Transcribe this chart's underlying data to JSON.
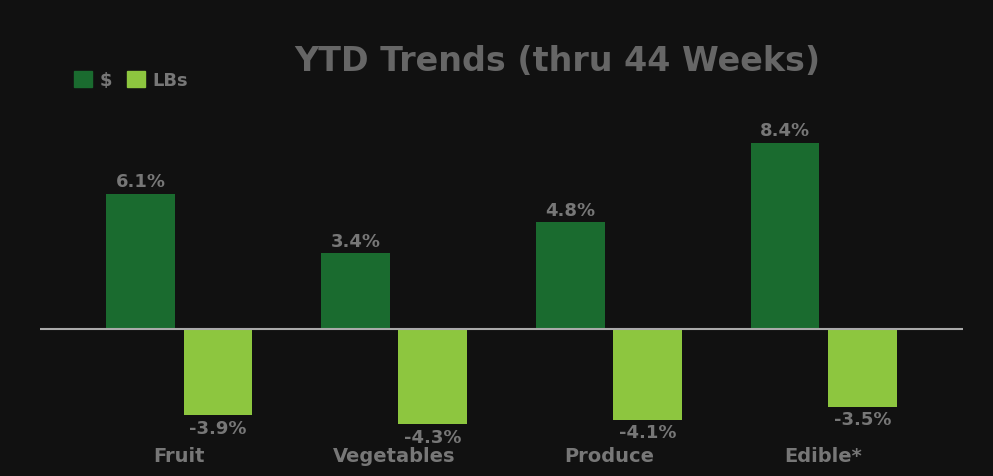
{
  "title": "YTD Trends (thru 44 Weeks)",
  "categories": [
    "Fruit",
    "Vegetables",
    "Produce",
    "Edible*"
  ],
  "dollar_values": [
    6.1,
    3.4,
    4.8,
    8.4
  ],
  "lbs_values": [
    -3.9,
    -4.3,
    -4.1,
    -3.5
  ],
  "dollar_color": "#1a6b2f",
  "lbs_color": "#8dc63f",
  "title_color": "#666666",
  "label_color": "#777777",
  "background_color": "#111111",
  "bar_width": 0.32,
  "bar_gap": 0.04,
  "ylim": [
    -6.2,
    11.0
  ],
  "legend_dollar": "$",
  "legend_lbs": "LBs",
  "zero_line_color": "#aaaaaa",
  "zero_line_lw": 1.5,
  "value_fontsize": 13,
  "category_fontsize": 14,
  "title_fontsize": 24
}
